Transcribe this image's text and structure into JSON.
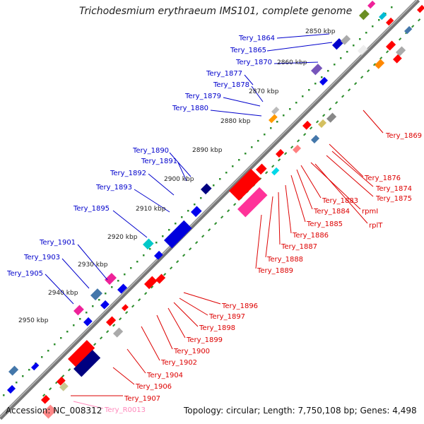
{
  "title": "Trichodesmium erythraeum IMS101, complete genome",
  "footer": {
    "accession": "Accession: NC_008312",
    "summary": "Topology: circular; Length: 7,750,108 bp; Genes: 4,498"
  },
  "colors": {
    "forward_label": "#0000cc",
    "reverse_label": "#dd0000",
    "rna_label": "#ff88bb",
    "backbone": "#666666",
    "tick_dots": "#2f8f2f"
  },
  "kbp_ticks": [
    "2850 kbp",
    "2860 kbp",
    "2870 kbp",
    "2880 kbp",
    "2890 kbp",
    "2900 kbp",
    "2910 kbp",
    "2920 kbp",
    "2930 kbp",
    "2940 kbp",
    "2950 kbp"
  ],
  "forward_labels": [
    "Tery_1864",
    "Tery_1865",
    "Tery_1870",
    "Tery_1877",
    "Tery_1878",
    "Tery_1879",
    "Tery_1880",
    "Tery_1890",
    "Tery_1891",
    "Tery_1892",
    "Tery_1893",
    "Tery_1895",
    "Tery_1901",
    "Tery_1903",
    "Tery_1905"
  ],
  "reverse_labels": [
    "Tery_1869",
    "Tery_1876",
    "Tery_1874",
    "Tery_1875",
    "rpmI",
    "rplT",
    "Tery_1883",
    "Tery_1884",
    "Tery_1885",
    "Tery_1886",
    "Tery_1887",
    "Tery_1888",
    "Tery_1889",
    "Tery_1896",
    "Tery_1897",
    "Tery_1898",
    "Tery_1899",
    "Tery_1900",
    "Tery_1902",
    "Tery_1904",
    "Tery_1906",
    "Tery_1907"
  ],
  "rna_labels": [
    "Tery_R0013"
  ]
}
